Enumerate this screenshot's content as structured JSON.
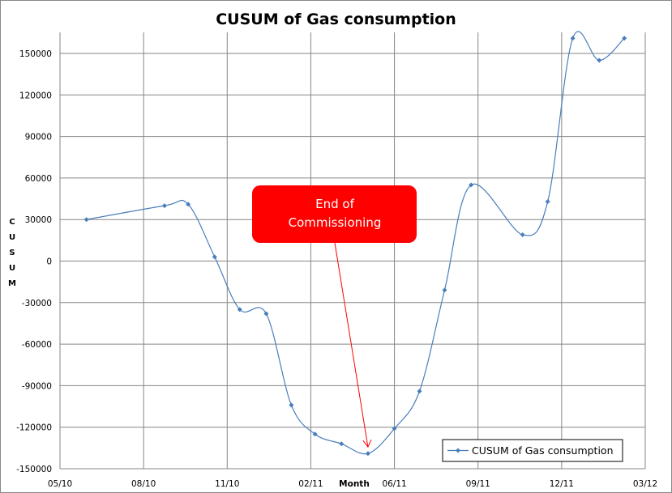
{
  "chart_data": {
    "type": "line",
    "title": "CUSUM of Gas consumption",
    "xlabel": "Month",
    "ylabel": "CUSUM",
    "ylim": [
      -150000,
      165000
    ],
    "yticks": [
      150000,
      120000,
      90000,
      60000,
      30000,
      0,
      -30000,
      -60000,
      -90000,
      -120000,
      -150000
    ],
    "xlim_months_since_05_10": [
      0,
      21
    ],
    "xtick_labels": [
      "05/10",
      "08/10",
      "11/10",
      "02/11",
      "06/11",
      "09/11",
      "12/11",
      "03/12"
    ],
    "xtick_months": [
      0,
      3,
      6,
      9,
      12,
      15,
      18,
      21
    ],
    "grid": true,
    "legend": {
      "position": "bottom-right",
      "entries": [
        "CUSUM of Gas consumption"
      ]
    },
    "series": [
      {
        "name": "CUSUM of Gas consumption",
        "color": "#4a7ebb",
        "x": [
          0.95,
          3.75,
          4.6,
          5.55,
          6.45,
          7.4,
          8.3,
          9.15,
          10.1,
          11.05,
          12.0,
          12.9,
          13.8,
          14.75,
          16.6,
          17.5,
          18.4,
          19.35,
          20.25
        ],
        "y": [
          30000,
          40000,
          41000,
          3000,
          -35000,
          -38000,
          -104000,
          -125000,
          -132000,
          -139000,
          -121000,
          -94000,
          -21000,
          55000,
          19000,
          43000,
          161000,
          145000,
          161000
        ]
      }
    ],
    "annotation": {
      "text_line1": "End of",
      "text_line2": "Commissioning",
      "color": "#ff0000",
      "points_to_month": 11.05
    }
  }
}
